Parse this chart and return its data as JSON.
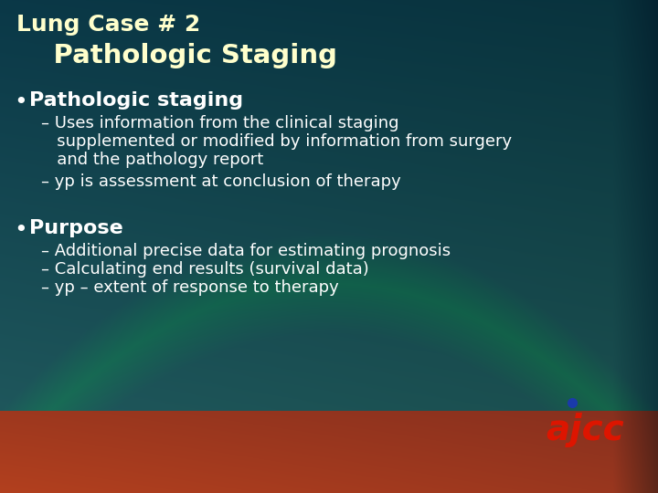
{
  "title_line1": "Lung Case # 2",
  "title_line2": "    Pathologic Staging",
  "title_color": "#FFFFCC",
  "bullet1": "Pathologic staging",
  "bullet1_color": "#FFFFFF",
  "sub1_1a": "– Uses information from the clinical staging",
  "sub1_1b": "   supplemented or modified by information from surgery",
  "sub1_1c": "   and the pathology report",
  "sub1_2": "– yp is assessment at conclusion of therapy",
  "sub_color": "#FFFFFF",
  "bullet2": "Purpose",
  "bullet2_color": "#FFFFFF",
  "sub2_1": "– Additional precise data for estimating prognosis",
  "sub2_2": "– Calculating end results (survival data)",
  "sub2_3": "– yp – extent of response to therapy",
  "ajcc_text_color": "#dd1500",
  "ajcc_dot_color": "#1a3aaa",
  "title_fontsize": 18,
  "subtitle_fontsize": 21,
  "bullet_fontsize": 16,
  "sub_fontsize": 13
}
